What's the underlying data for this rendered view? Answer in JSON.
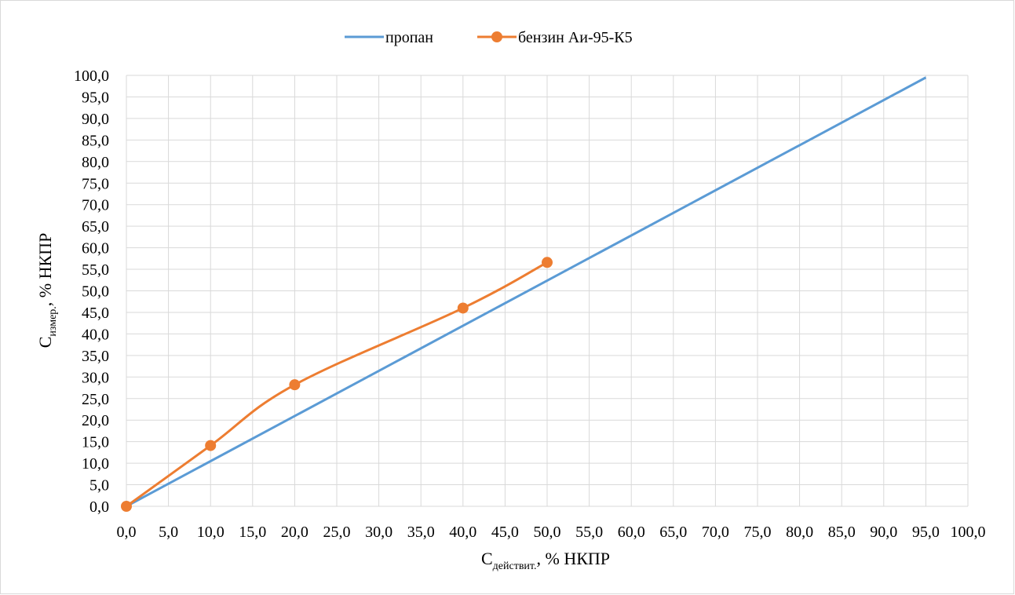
{
  "chart_data": {
    "type": "line",
    "title": "",
    "xlabel": {
      "main": "C",
      "sub": "действит.",
      "rest": ", % НКПР"
    },
    "ylabel": {
      "main": "C",
      "sub": "измер.",
      "rest": ", % НКПР"
    },
    "xlim": [
      0,
      100
    ],
    "ylim": [
      0,
      100
    ],
    "x_ticks": [
      "0,0",
      "5,0",
      "10,0",
      "15,0",
      "20,0",
      "25,0",
      "30,0",
      "35,0",
      "40,0",
      "45,0",
      "50,0",
      "55,0",
      "60,0",
      "65,0",
      "70,0",
      "75,0",
      "80,0",
      "85,0",
      "90,0",
      "95,0",
      "100,0"
    ],
    "y_ticks": [
      "0,0",
      "5,0",
      "10,0",
      "15,0",
      "20,0",
      "25,0",
      "30,0",
      "35,0",
      "40,0",
      "45,0",
      "50,0",
      "55,0",
      "60,0",
      "65,0",
      "70,0",
      "75,0",
      "80,0",
      "85,0",
      "90,0",
      "95,0",
      "100,0"
    ],
    "grid": true,
    "legend_position": "top",
    "series": [
      {
        "name": "пропан",
        "color": "#5b9bd5",
        "markers": false,
        "x": [
          0,
          95
        ],
        "y": [
          0,
          99.5
        ]
      },
      {
        "name": "бензин Аи-95-К5",
        "color": "#ed7d31",
        "markers": true,
        "x": [
          0,
          10,
          20,
          40,
          50
        ],
        "y": [
          0,
          14.1,
          28.2,
          46.0,
          56.6
        ]
      }
    ]
  }
}
